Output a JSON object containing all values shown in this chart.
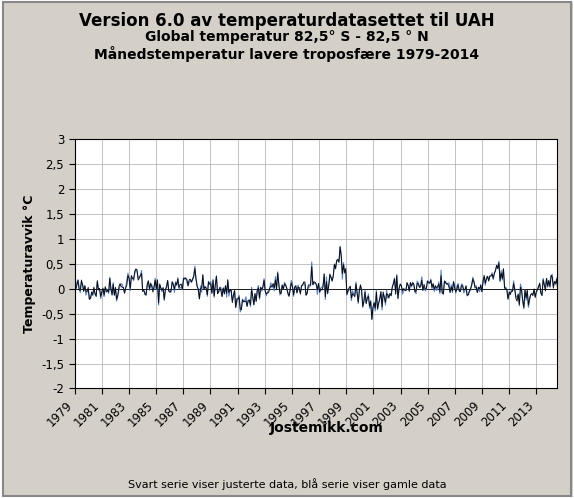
{
  "title_line1": "Version 6.0 av temperaturdatasettet til UAH",
  "title_line2": "Global temperatur 82,5° S - 82,5 ° N",
  "title_line3": "Månedstemperatur lavere troposfære 1979-2014",
  "xlabel": "Jostemikk.com",
  "ylabel": "Temperaturavvik °C",
  "footnote": "Svart serie viser justerte data, blå serie viser gamle data",
  "ylim": [
    -2.0,
    3.0
  ],
  "yticks": [
    -2.0,
    -1.5,
    -1.0,
    -0.5,
    0.0,
    0.5,
    1.0,
    1.5,
    2.0,
    2.5,
    3.0
  ],
  "xtick_years": [
    1979,
    1981,
    1983,
    1985,
    1987,
    1989,
    1991,
    1993,
    1995,
    1997,
    1999,
    2001,
    2003,
    2005,
    2007,
    2009,
    2011,
    2013
  ],
  "color_black": "#000000",
  "color_blue": "#4472C4",
  "background_color": "#D4D0C8",
  "plot_bg_color": "#FFFFFF",
  "title_fontsize": 12,
  "subtitle_fontsize": 10,
  "tick_fontsize": 8.5,
  "ylabel_fontsize": 9,
  "xlabel_fontsize": 10,
  "footnote_fontsize": 8
}
